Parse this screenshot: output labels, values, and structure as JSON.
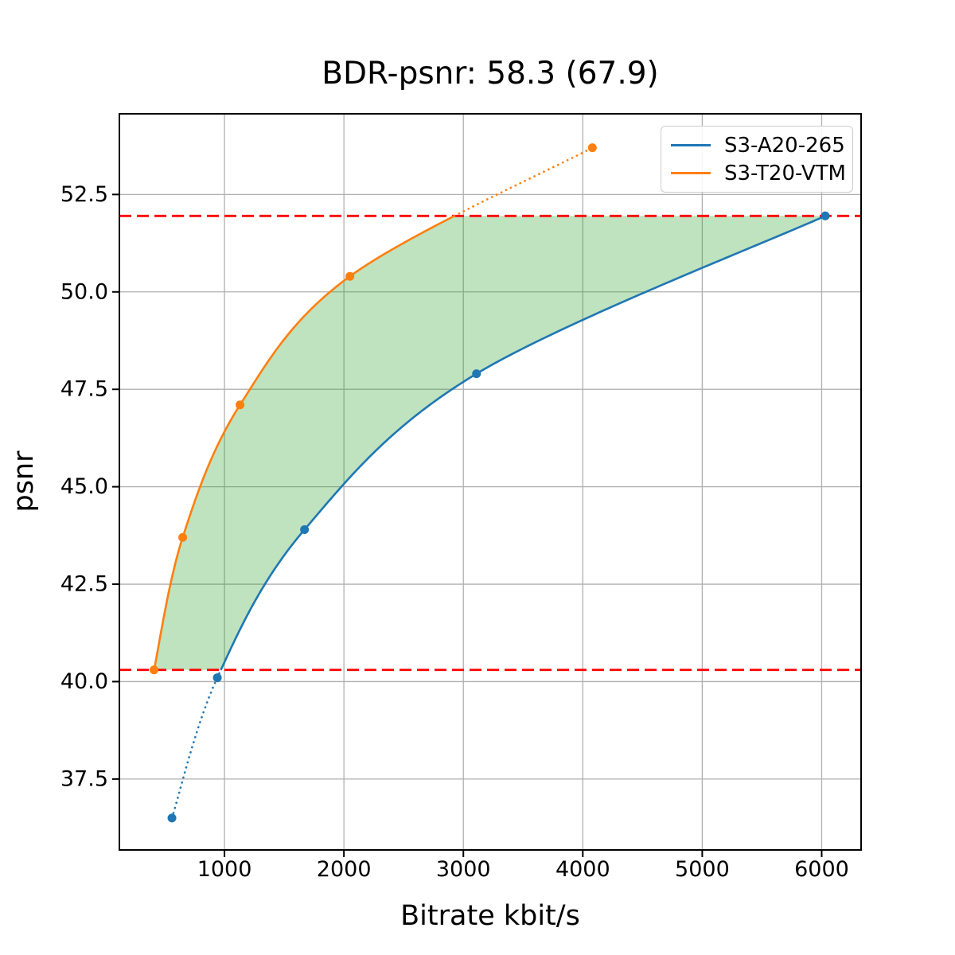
{
  "figure": {
    "title": "BDR-psnr: 58.3 (67.9)"
  },
  "chart_data": {
    "type": "line",
    "title": "BDR-psnr: 58.3 (67.9)",
    "xlabel": "Bitrate kbit/s",
    "ylabel": "psnr",
    "xlim": [
      120,
      6330
    ],
    "ylim": [
      35.68,
      54.57
    ],
    "xticks": [
      1000,
      2000,
      3000,
      4000,
      5000,
      6000
    ],
    "yticks": [
      37.5,
      40.0,
      42.5,
      45.0,
      47.5,
      50.0,
      52.5
    ],
    "grid": true,
    "legend_position": "upper-right",
    "series": [
      {
        "name": "S3-A20-265",
        "color": "#1f77b4",
        "marker": "circle",
        "points": [
          [
            560,
            36.5
          ],
          [
            940,
            40.1
          ],
          [
            1670,
            43.9
          ],
          [
            3110,
            47.9
          ],
          [
            6030,
            51.95
          ]
        ],
        "outside_region_style": "dotted-below-lower-bound"
      },
      {
        "name": "S3-T20-VTM",
        "color": "#ff7f0e",
        "marker": "circle",
        "points": [
          [
            410,
            40.3
          ],
          [
            650,
            43.7
          ],
          [
            1130,
            47.1
          ],
          [
            2050,
            50.4
          ],
          [
            4080,
            53.7
          ]
        ],
        "outside_region_style": "dotted-above-upper-bound"
      }
    ],
    "hlines": {
      "upper": 51.95,
      "lower": 40.3,
      "color": "#ff0000",
      "style": "dashed"
    },
    "shaded_region": {
      "between": [
        "S3-T20-VTM",
        "S3-A20-265"
      ],
      "clipped_to_hlines": true,
      "color": "#2ca02c",
      "opacity": 0.3
    }
  },
  "legend": {
    "items": [
      {
        "label": "S3-A20-265",
        "color": "#1f77b4"
      },
      {
        "label": "S3-T20-VTM",
        "color": "#ff7f0e"
      }
    ]
  },
  "style": {
    "grid_color": "#b0b0b0",
    "spine_color": "#000000",
    "tick_color": "#000000",
    "background": "#ffffff"
  }
}
